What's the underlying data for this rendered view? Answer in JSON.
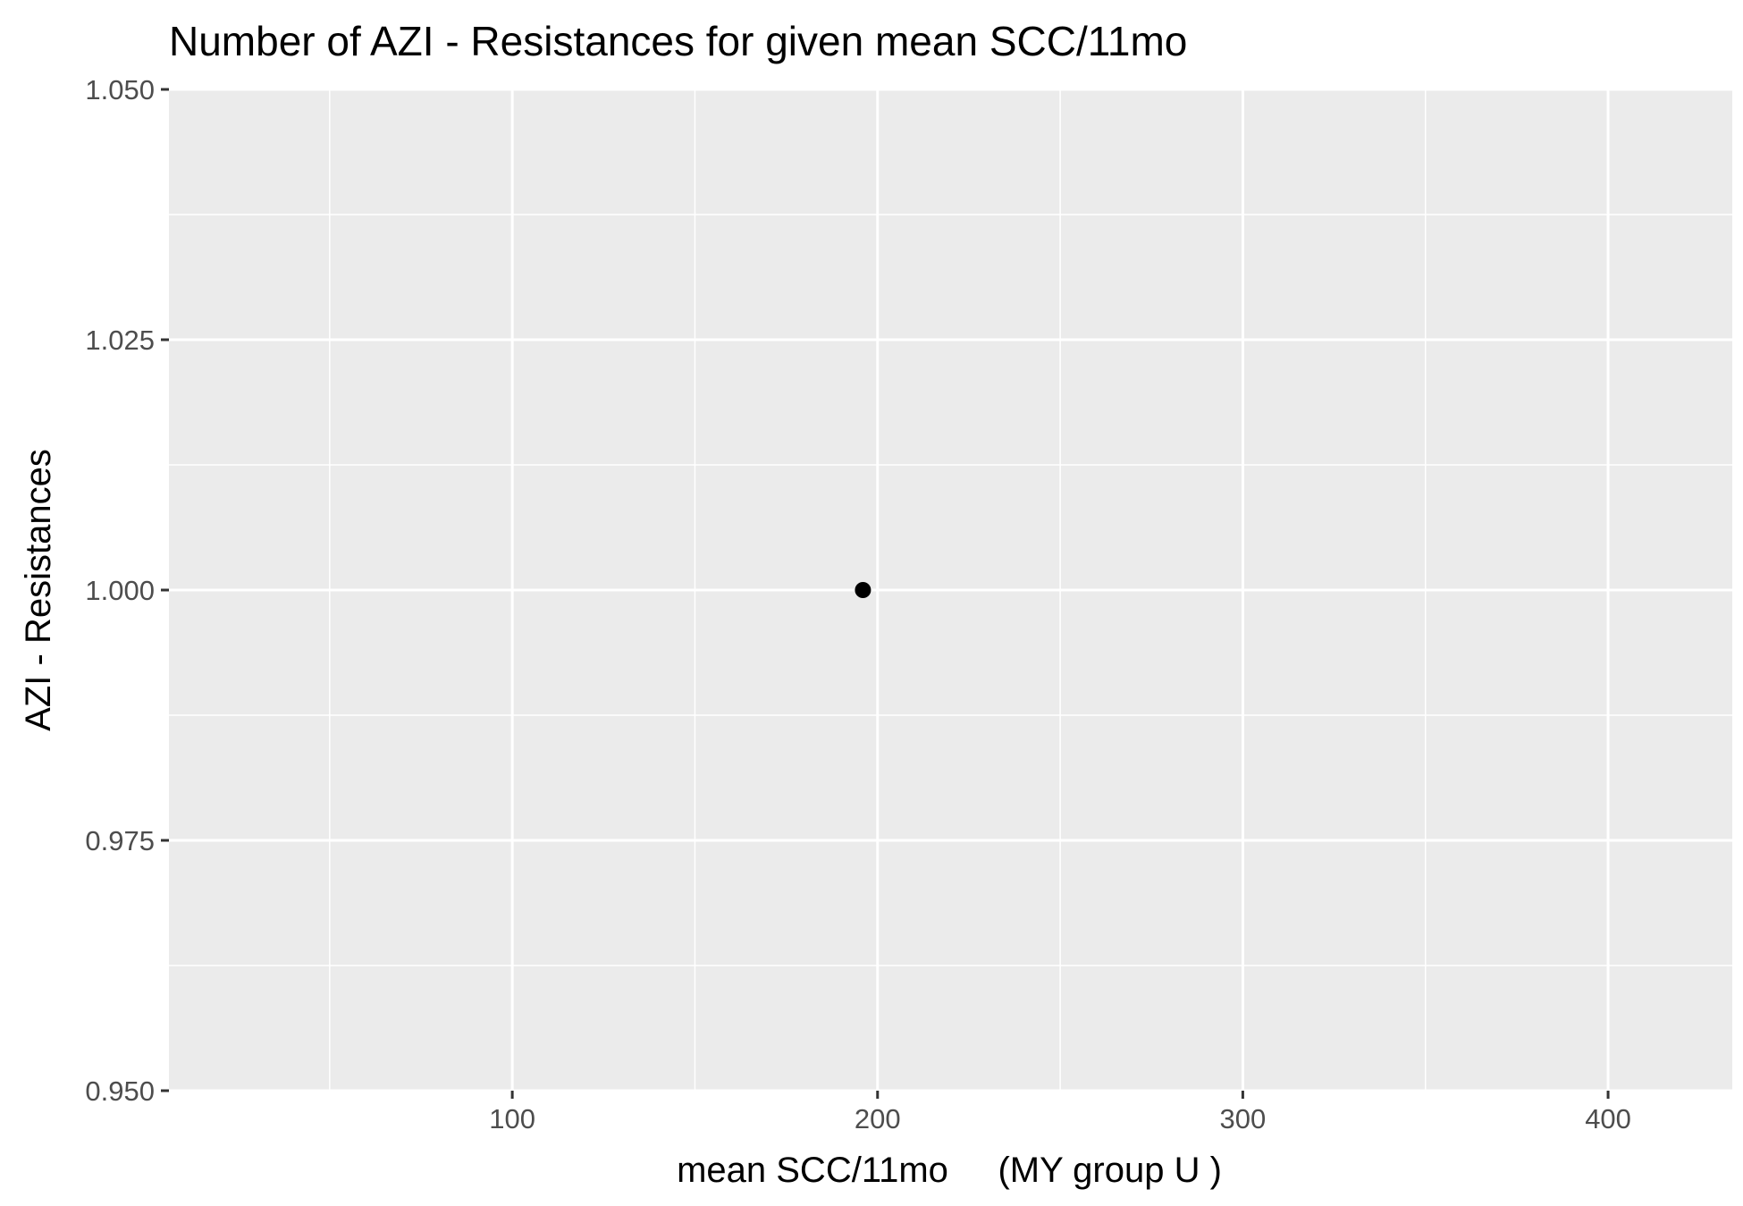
{
  "chart_data": {
    "type": "scatter",
    "title": "Number of AZI - Resistances for given mean SCC/11mo",
    "xlabel": "mean SCC/11mo     (MY group U )",
    "ylabel": "AZI - Resistances",
    "xlim": [
      6,
      434
    ],
    "ylim": [
      0.95,
      1.05
    ],
    "x_ticks": [
      100,
      200,
      300,
      400
    ],
    "x_tick_labels": [
      "100",
      "200",
      "300",
      "400"
    ],
    "x_minor_ticks": [
      50,
      150,
      250,
      350
    ],
    "y_ticks": [
      0.95,
      0.975,
      1.0,
      1.025,
      1.05
    ],
    "y_tick_labels": [
      "0.950",
      "0.975",
      "1.000",
      "1.025",
      "1.050"
    ],
    "y_minor_ticks": [
      0.9625,
      0.9875,
      1.0125,
      1.0375
    ],
    "grid": true,
    "legend": "none",
    "points": [
      {
        "x": 196,
        "y": 1.0
      }
    ],
    "colors": {
      "panel_background": "#ebebeb",
      "grid_line": "#ffffff",
      "point": "#000000",
      "tick_mark": "#333333",
      "tick_label": "#4d4d4d"
    }
  }
}
